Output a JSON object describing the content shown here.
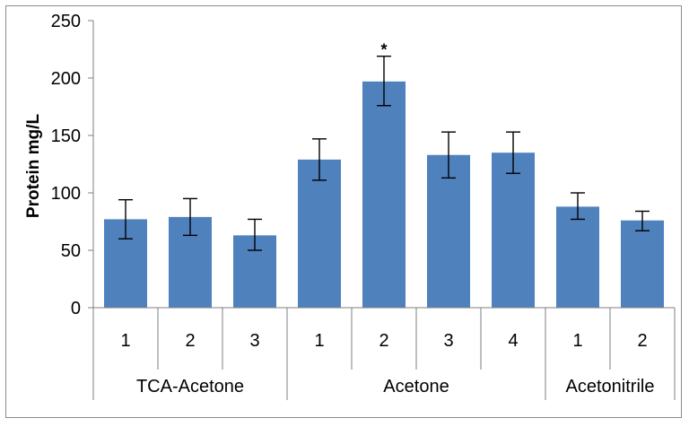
{
  "chart_data": {
    "type": "bar",
    "title": "",
    "xlabel": "",
    "ylabel": "Protein mg/L",
    "ylim": [
      0,
      250
    ],
    "yticks": [
      0,
      50,
      100,
      150,
      200,
      250
    ],
    "grid": false,
    "legend": "none",
    "bar_color": "#4f81bd",
    "categories": [
      "1",
      "2",
      "3",
      "1",
      "2",
      "3",
      "4",
      "1",
      "2"
    ],
    "groups": [
      {
        "name": "TCA-Acetone",
        "categories": [
          "1",
          "2",
          "3"
        ]
      },
      {
        "name": "Acetone",
        "categories": [
          "1",
          "2",
          "3",
          "4"
        ]
      },
      {
        "name": "Acetonitrile",
        "categories": [
          "1",
          "2"
        ]
      }
    ],
    "values": [
      77,
      79,
      63,
      129,
      197,
      133,
      135,
      88,
      76
    ],
    "error_low": [
      60,
      63,
      50,
      111,
      176,
      113,
      117,
      77,
      67
    ],
    "error_high": [
      94,
      95,
      77,
      147,
      219,
      153,
      153,
      100,
      84
    ],
    "annotations": [
      {
        "category_index": 4,
        "text": "*"
      }
    ]
  }
}
